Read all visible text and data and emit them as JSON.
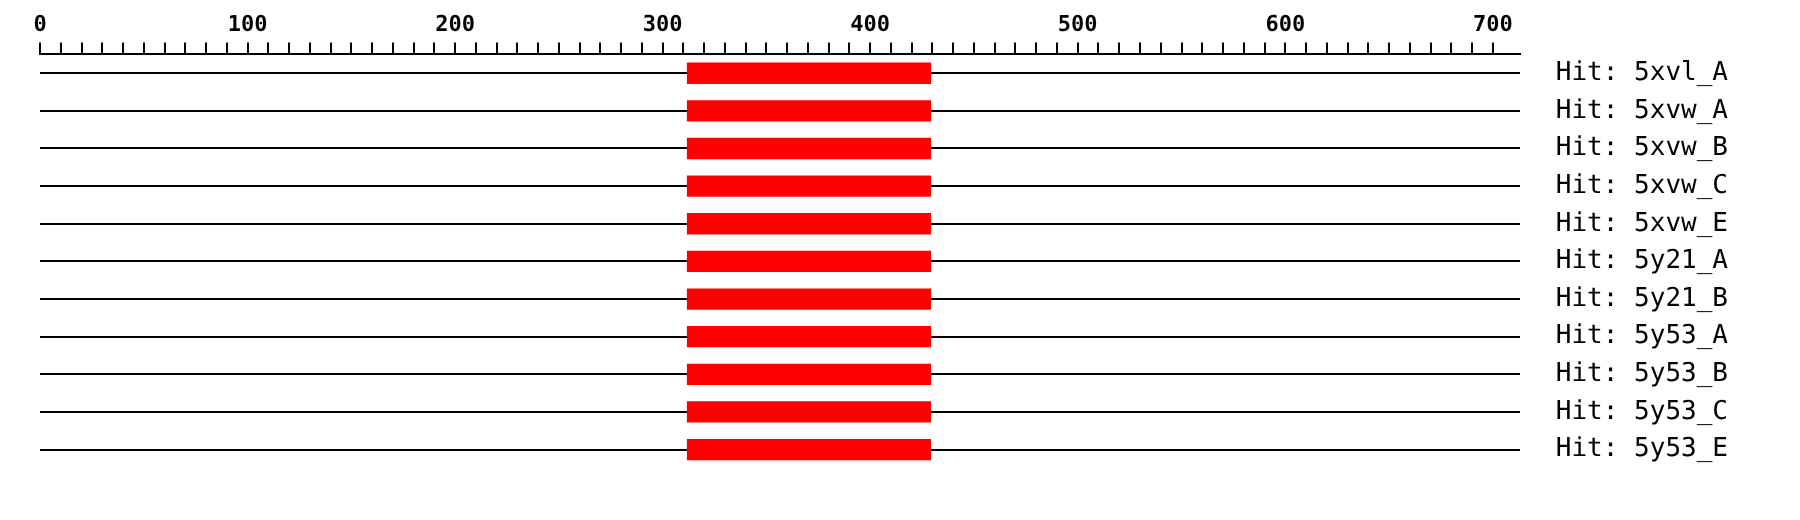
{
  "chart_data": {
    "type": "bar",
    "orientation": "horizontal",
    "categories": [
      "Hit: 5xvl_A",
      "Hit: 5xvw_A",
      "Hit: 5xvw_B",
      "Hit: 5xvw_C",
      "Hit: 5xvw_E",
      "Hit: 5y21_A",
      "Hit: 5y21_B",
      "Hit: 5y53_A",
      "Hit: 5y53_B",
      "Hit: 5y53_C",
      "Hit: 5y53_E"
    ],
    "values": [
      117,
      117,
      117,
      117,
      117,
      117,
      117,
      117,
      117,
      117,
      117
    ],
    "base": [
      312,
      312,
      312,
      312,
      312,
      312,
      312,
      312,
      312,
      312,
      312
    ],
    "color": "#ff0000",
    "xlim": [
      0,
      713
    ],
    "xticks": [
      0,
      {
        "value": 10,
        "label": null
      },
      {
        "value": 20,
        "label": null
      },
      {
        "value": 30,
        "label": null
      },
      {
        "value": 40,
        "label": null
      },
      {
        "value": 50,
        "label": null
      },
      {
        "value": 60,
        "label": null
      },
      {
        "value": 70,
        "label": null
      },
      {
        "value": 80,
        "label": null
      },
      {
        "value": 90,
        "label": null
      },
      100,
      {
        "value": 110,
        "label": null
      },
      {
        "value": 120,
        "label": null
      },
      {
        "value": 130,
        "label": null
      },
      {
        "value": 140,
        "label": null
      },
      {
        "value": 150,
        "label": null
      },
      {
        "value": 160,
        "label": null
      },
      {
        "value": 170,
        "label": null
      },
      {
        "value": 180,
        "label": null
      },
      {
        "value": 190,
        "label": null
      },
      200,
      {
        "value": 210,
        "label": null
      },
      {
        "value": 220,
        "label": null
      },
      {
        "value": 230,
        "label": null
      },
      {
        "value": 240,
        "label": null
      },
      {
        "value": 250,
        "label": null
      },
      {
        "value": 260,
        "label": null
      },
      {
        "value": 270,
        "label": null
      },
      {
        "value": 280,
        "label": null
      },
      {
        "value": 290,
        "label": null
      },
      300,
      {
        "value": 310,
        "label": null
      },
      {
        "value": 320,
        "label": null
      },
      {
        "value": 330,
        "label": null
      },
      {
        "value": 340,
        "label": null
      },
      {
        "value": 350,
        "label": null
      },
      {
        "value": 360,
        "label": null
      },
      {
        "value": 370,
        "label": null
      },
      {
        "value": 380,
        "label": null
      },
      {
        "value": 390,
        "label": null
      },
      400,
      {
        "value": 410,
        "label": null
      },
      {
        "value": 420,
        "label": null
      },
      {
        "value": 430,
        "label": null
      },
      {
        "value": 440,
        "label": null
      },
      {
        "value": 450,
        "label": null
      },
      {
        "value": 460,
        "label": null
      },
      {
        "value": 470,
        "label": null
      },
      {
        "value": 480,
        "label": null
      },
      {
        "value": 490,
        "label": null
      },
      500,
      {
        "value": 510,
        "label": null
      },
      {
        "value": 520,
        "label": null
      },
      {
        "value": 530,
        "label": null
      },
      {
        "value": 540,
        "label": null
      },
      {
        "value": 550,
        "label": null
      },
      {
        "value": 560,
        "label": null
      },
      {
        "value": 570,
        "label": null
      },
      {
        "value": 580,
        "label": null
      },
      {
        "value": 590,
        "label": null
      },
      600,
      {
        "value": 610,
        "label": null
      },
      {
        "value": 620,
        "label": null
      },
      {
        "value": 630,
        "label": null
      },
      {
        "value": 640,
        "label": null
      },
      {
        "value": 650,
        "label": null
      },
      {
        "value": 660,
        "label": null
      },
      {
        "value": 670,
        "label": null
      },
      {
        "value": 680,
        "label": null
      },
      {
        "value": 690,
        "label": null
      },
      700
    ],
    "grid": "y",
    "legend": false
  }
}
